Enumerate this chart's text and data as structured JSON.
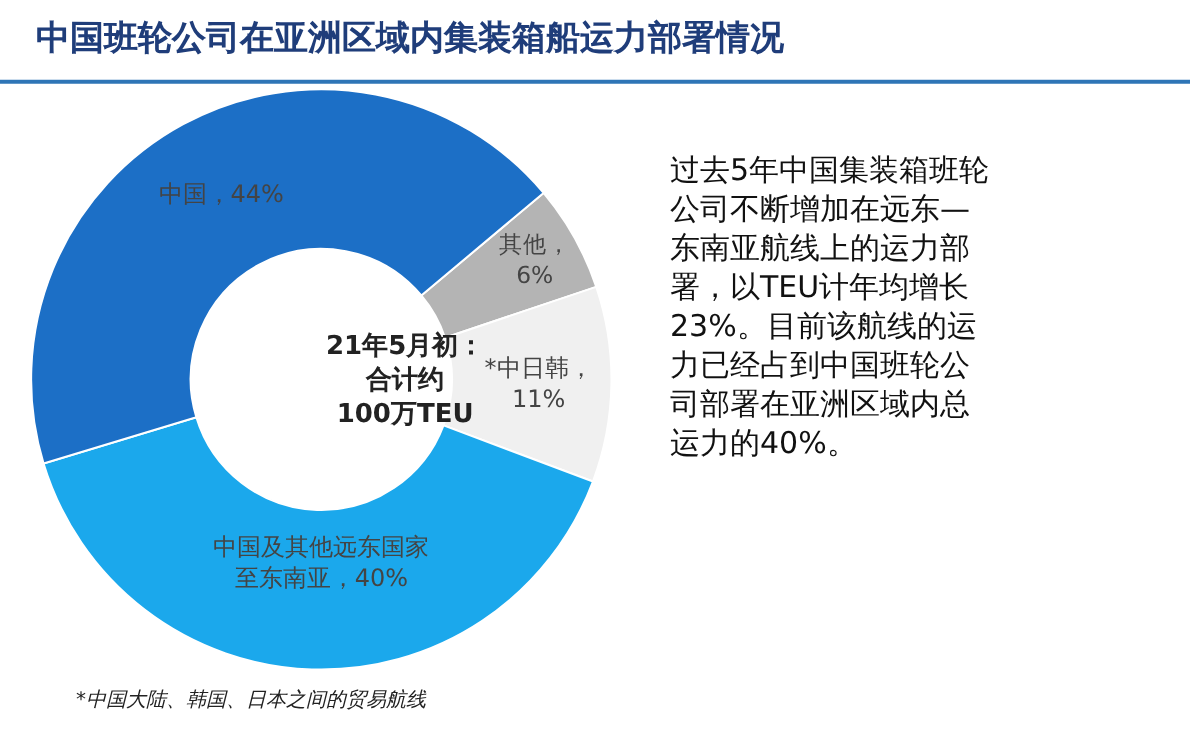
{
  "chart_data": {
    "type": "donut",
    "title": "中国班轮公司在亚洲区域内集装箱船运力部署情况",
    "categories": [
      "其他",
      "*中日韩",
      "中国及其他远东国家至东南亚",
      "中国"
    ],
    "values": [
      6,
      11,
      40,
      44
    ],
    "colors": [
      "#b4b4b4",
      "#f0f0f0",
      "#1ba8ec",
      "#1c6fc6"
    ],
    "value_labels": [
      "，6%",
      "，11%",
      "，40%",
      "，44%"
    ],
    "annotations": [
      "21年5月初：合计约100万TEU",
      "过去5年中国集装箱班轮公司不断增加在远东—东南亚航线上的运力部署，以TEU计年均增长23%。目前该航线的运力已经占到中国班轮公司部署在亚洲区域内总运力的40%。",
      "*中国大陆、韩国、日本之间的贸易航线"
    ]
  }
}
